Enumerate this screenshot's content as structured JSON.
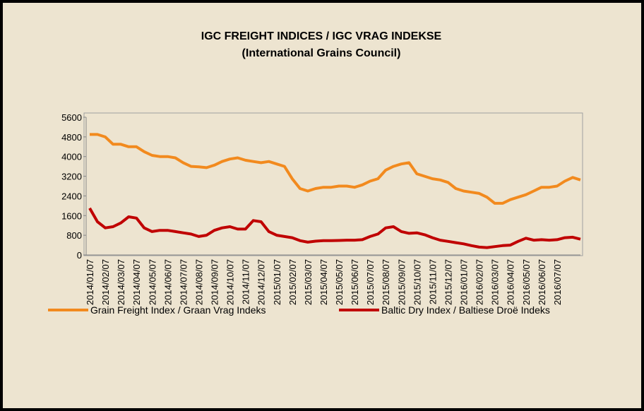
{
  "chart_data": {
    "type": "line",
    "title": "IGC FREIGHT INDICES / IGC VRAG INDEKSE",
    "subtitle": "(International Grains Council)",
    "categories": [
      "2014/01/07",
      null,
      "2014/02/07",
      null,
      "2014/03/07",
      null,
      "2014/04/07",
      null,
      "2014/05/07",
      null,
      "2014/06/07",
      null,
      "2014/07/07",
      null,
      "2014/08/07",
      null,
      "2014/09/07",
      null,
      "2014/10/07",
      null,
      "2014/11/07",
      null,
      "2014/12/07",
      null,
      "2015/01/07",
      null,
      "2015/02/07",
      null,
      "2015/03/07",
      null,
      "2015/04/07",
      null,
      "2015/05/07",
      null,
      "2015/06/07",
      null,
      "2015/07/07",
      null,
      "2015/08/07",
      null,
      "2015/09/07",
      null,
      "2015/10/07",
      null,
      "2015/11/07",
      null,
      "2015/12/07",
      null,
      "2016/01/07",
      null,
      "2016/02/07",
      null,
      "2016/03/07",
      null,
      "2016/04/07",
      null,
      "2016/05/07",
      null,
      "2016/06/07",
      null,
      "2016/07/07",
      null,
      null,
      null
    ],
    "series": [
      {
        "name": "Grain Freight Index / Graan Vrag Indeks",
        "color": "#f28a1e",
        "values": [
          4900,
          4900,
          4800,
          4500,
          4500,
          4400,
          4400,
          4200,
          4050,
          4000,
          4000,
          3950,
          3750,
          3600,
          3580,
          3550,
          3650,
          3800,
          3900,
          3950,
          3850,
          3800,
          3750,
          3800,
          3700,
          3600,
          3100,
          2700,
          2600,
          2700,
          2750,
          2750,
          2800,
          2800,
          2750,
          2850,
          3000,
          3100,
          3450,
          3600,
          3700,
          3750,
          3300,
          3200,
          3100,
          3050,
          2950,
          2700,
          2600,
          2550,
          2500,
          2350,
          2100,
          2100,
          2250,
          2350,
          2450,
          2600,
          2750,
          2750,
          2800,
          3000,
          3150,
          3050
        ]
      },
      {
        "name": "Baltic Dry Index / Baltiese Droë Indeks",
        "color": "#c00000",
        "values": [
          1900,
          1350,
          1100,
          1150,
          1300,
          1550,
          1500,
          1100,
          950,
          1000,
          1000,
          950,
          900,
          850,
          750,
          800,
          1000,
          1100,
          1150,
          1050,
          1050,
          1400,
          1350,
          950,
          800,
          750,
          700,
          580,
          520,
          560,
          580,
          580,
          590,
          600,
          600,
          620,
          750,
          850,
          1100,
          1150,
          950,
          880,
          900,
          820,
          700,
          600,
          550,
          500,
          450,
          380,
          320,
          300,
          340,
          380,
          400,
          550,
          680,
          600,
          620,
          600,
          620,
          700,
          720,
          640
        ]
      }
    ],
    "ylim": [
      0,
      5600
    ],
    "yticks": [
      0,
      800,
      1600,
      2400,
      3200,
      4000,
      4800,
      5600
    ],
    "grid": false
  }
}
